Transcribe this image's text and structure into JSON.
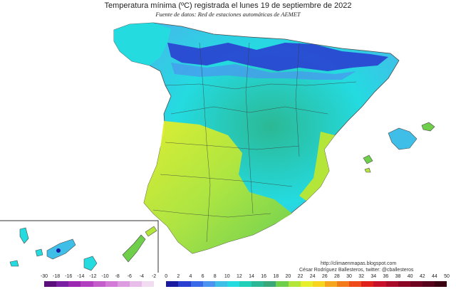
{
  "title": "Temperatura mínima (ºC) registrada el lunes 19 de septiembre de 2022",
  "subtitle": "Fuente de datos: Red de estaciones automáticas de AEMET",
  "credit_url": "http://climaenmapas.blogspot.com",
  "credit_author": "César Rodríguez Ballesteros, twitter: @cballesteros",
  "legend": {
    "unit": "ºC",
    "ticks": [
      "-30",
      "-18",
      "-16",
      "-14",
      "-12",
      "-10",
      "-8",
      "-6",
      "-4",
      "-2",
      "0",
      "2",
      "4",
      "6",
      "8",
      "10",
      "12",
      "14",
      "16",
      "18",
      "20",
      "22",
      "24",
      "26",
      "28",
      "30",
      "32",
      "34",
      "36",
      "38",
      "40",
      "42",
      "44",
      "50"
    ],
    "colors": [
      "#5a0f7a",
      "#7b1fa2",
      "#9c27b0",
      "#b23ec0",
      "#c45ccc",
      "#d27ad6",
      "#dd9be0",
      "#e8bde9",
      "#f1dcf2",
      "#ffffff",
      "#1a1aa0",
      "#2a3fd0",
      "#3a6ae8",
      "#4b94f0",
      "#3fbfe8",
      "#24dbe0",
      "#1fcfb8",
      "#2bb894",
      "#3aa878",
      "#6fcf4a",
      "#b4e63a",
      "#e6ef2a",
      "#f7d51e",
      "#f6a61c",
      "#f37a1a",
      "#ee4a1a",
      "#e0201a",
      "#c8102a",
      "#a80a28",
      "#8a0624",
      "#6e0420",
      "#56021a",
      "#3a0110"
    ]
  },
  "map": {
    "region": "España peninsular, Baleares y Canarias",
    "dominant_colors": {
      "north_coast_cold": "#2a3fd0",
      "north_plateau": "#24dbe0",
      "central": "#1fcfb8",
      "southwest_warm": "#d4ef2a",
      "east_coast": "#6fcf4a"
    }
  }
}
